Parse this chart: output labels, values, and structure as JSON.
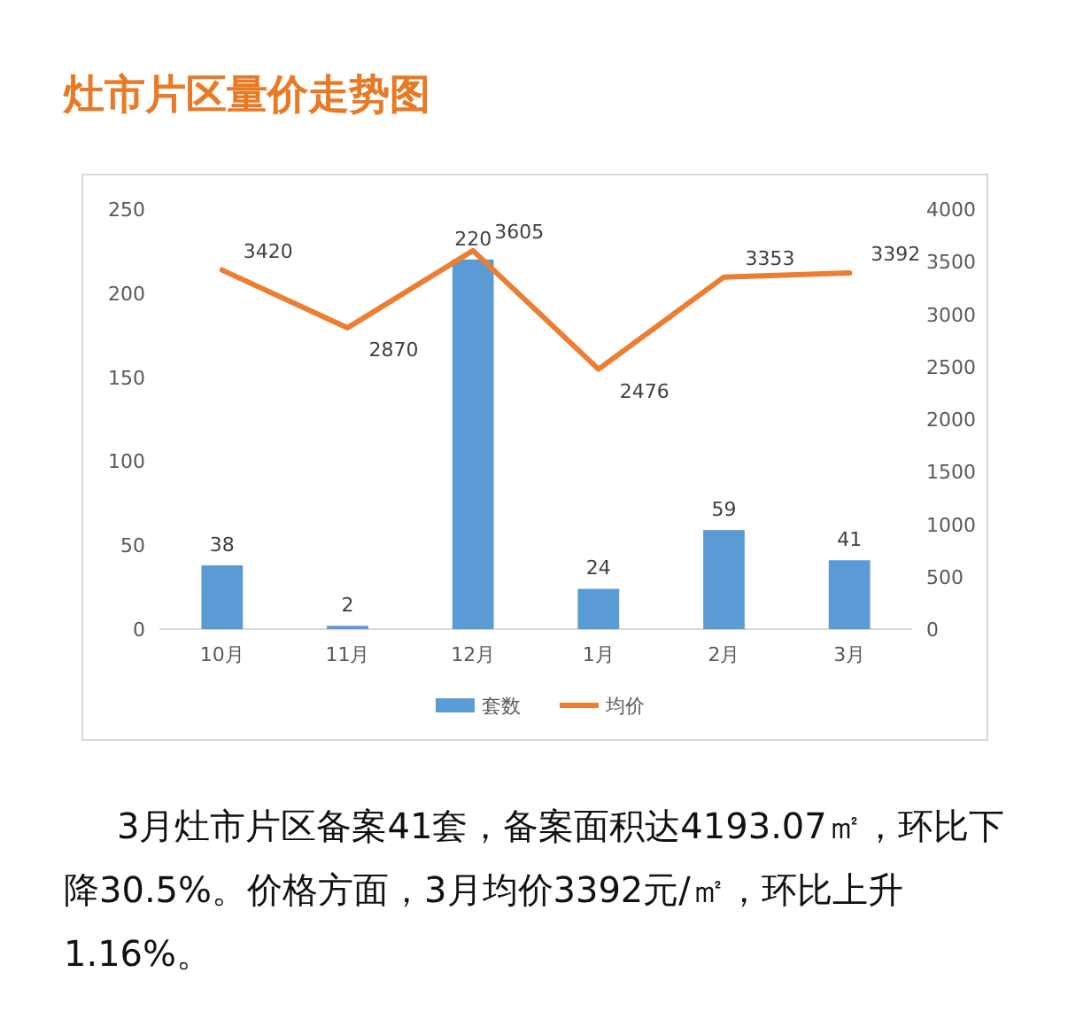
{
  "chart_data": {
    "type": "bar",
    "title": "灶市片区量价走势图",
    "categories": [
      "10月",
      "11月",
      "12月",
      "1月",
      "2月",
      "3月"
    ],
    "series": [
      {
        "name": "套数",
        "color": "#5b9bd5",
        "values": [
          38,
          2,
          220,
          24,
          59,
          41
        ]
      },
      {
        "name": "均价",
        "type": "line",
        "axis": "y2",
        "color": "#ed7d31",
        "values": [
          3420,
          2870,
          3605,
          2476,
          3353,
          3392
        ]
      }
    ],
    "ylim": [
      0,
      250
    ],
    "yticks": [
      0,
      50,
      100,
      150,
      200,
      250
    ],
    "y2lim": [
      0,
      4000
    ],
    "y2ticks": [
      0,
      500,
      1000,
      1500,
      2000,
      2500,
      3000,
      3500,
      4000
    ],
    "data_labels": true,
    "legend": "bottom",
    "grid": false,
    "marker": "none",
    "line_style": "solid",
    "annotations": [
      "3月灶市片区备案41套，备案面积达4193.07㎡，环比下降30.5%。价格方面，3月均价3392元/㎡，环比上升1.16%。"
    ]
  }
}
